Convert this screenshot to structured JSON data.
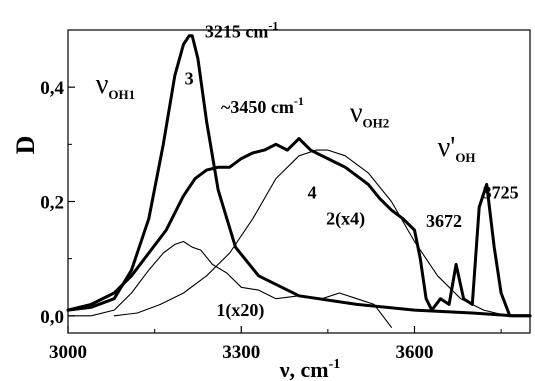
{
  "chart_data": {
    "type": "line",
    "xlabel": "ν, cm",
    "xlabel_exponent": "-1",
    "ylabel": "D",
    "xlim": [
      3000,
      3800
    ],
    "ylim": [
      -0.03,
      0.5
    ],
    "x_ticks": [
      3000,
      3300,
      3600
    ],
    "x_tick_labels": [
      "3000",
      "3300",
      "3600"
    ],
    "y_ticks": [
      0.0,
      0.2,
      0.4
    ],
    "y_tick_labels": [
      "0,0",
      "0,2",
      "0,4"
    ],
    "grid": false,
    "series": [
      {
        "name": "3",
        "style": "thick",
        "x": [
          3000,
          3040,
          3080,
          3110,
          3140,
          3165,
          3185,
          3200,
          3210,
          3215,
          3225,
          3240,
          3260,
          3290,
          3330,
          3400,
          3500,
          3600,
          3700,
          3770,
          3800
        ],
        "y": [
          0.01,
          0.015,
          0.03,
          0.08,
          0.17,
          0.3,
          0.42,
          0.475,
          0.49,
          0.49,
          0.45,
          0.34,
          0.22,
          0.12,
          0.07,
          0.035,
          0.02,
          0.01,
          0.005,
          0.0,
          0.0
        ]
      },
      {
        "name": "2(x4)",
        "style": "thick",
        "x": [
          3000,
          3040,
          3080,
          3110,
          3140,
          3170,
          3200,
          3220,
          3240,
          3260,
          3280,
          3300,
          3320,
          3340,
          3360,
          3380,
          3400,
          3420,
          3440,
          3460,
          3480,
          3500,
          3520,
          3540,
          3560,
          3580,
          3600,
          3610,
          3620,
          3630,
          3645,
          3660,
          3672,
          3685,
          3700,
          3712,
          3725,
          3738,
          3750,
          3765,
          3780,
          3800
        ],
        "y": [
          0.01,
          0.02,
          0.04,
          0.07,
          0.11,
          0.15,
          0.21,
          0.24,
          0.255,
          0.26,
          0.26,
          0.275,
          0.285,
          0.29,
          0.3,
          0.29,
          0.31,
          0.29,
          0.28,
          0.27,
          0.26,
          0.245,
          0.23,
          0.205,
          0.185,
          0.17,
          0.15,
          0.1,
          0.03,
          0.01,
          0.03,
          0.02,
          0.09,
          0.03,
          0.02,
          0.19,
          0.23,
          0.12,
          0.04,
          0.0,
          0.0,
          0.0
        ]
      },
      {
        "name": "4",
        "style": "thin",
        "x": [
          3080,
          3120,
          3160,
          3200,
          3240,
          3280,
          3320,
          3360,
          3400,
          3430,
          3450,
          3480,
          3520,
          3560,
          3600,
          3640,
          3680,
          3720,
          3760
        ],
        "y": [
          0.0,
          0.005,
          0.02,
          0.04,
          0.07,
          0.11,
          0.17,
          0.24,
          0.28,
          0.29,
          0.29,
          0.28,
          0.25,
          0.2,
          0.13,
          0.07,
          0.03,
          0.01,
          0.0
        ]
      },
      {
        "name": "1(x20)",
        "style": "thin",
        "x": [
          3000,
          3040,
          3080,
          3110,
          3140,
          3165,
          3185,
          3200,
          3215,
          3230,
          3250,
          3275,
          3300,
          3330,
          3360,
          3400,
          3440,
          3470,
          3500,
          3530,
          3560
        ],
        "y": [
          0.0,
          0.0,
          0.01,
          0.04,
          0.08,
          0.11,
          0.125,
          0.13,
          0.12,
          0.115,
          0.09,
          0.075,
          0.05,
          0.045,
          0.03,
          0.035,
          0.03,
          0.04,
          0.03,
          0.02,
          -0.02
        ]
      }
    ],
    "annotations": [
      {
        "text": "3215 cm",
        "sup": "-1",
        "x": 3237,
        "y": 0.487
      },
      {
        "text": "~3450 cm",
        "sup": "-1",
        "x": 3265,
        "y": 0.355
      },
      {
        "text": "3",
        "x": 3202,
        "y": 0.405
      },
      {
        "text": "4",
        "x": 3415,
        "y": 0.205
      },
      {
        "text": "2(x4)",
        "x": 3447,
        "y": 0.16
      },
      {
        "text": "1(x20)",
        "x": 3257,
        "y": 0.0
      },
      {
        "text": "3672",
        "x": 3620,
        "y": 0.155
      },
      {
        "text": "3725",
        "x": 3718,
        "y": 0.205
      },
      {
        "nu": "ν",
        "sub": "OH1",
        "x": 3048,
        "y": 0.39
      },
      {
        "nu": "ν",
        "sub": "OH2",
        "x": 3488,
        "y": 0.34
      },
      {
        "nu": "ν'",
        "sub": "OH",
        "x": 3640,
        "y": 0.28
      }
    ]
  }
}
